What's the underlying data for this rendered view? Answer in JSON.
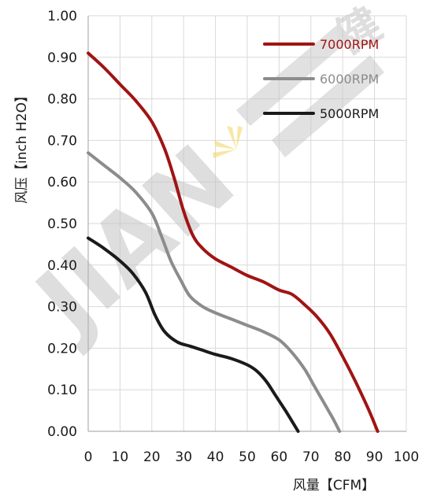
{
  "chart_data": {
    "type": "line",
    "title": "",
    "xlabel": "风量【CFM】",
    "ylabel": "风压【inch H2O】",
    "xlim": [
      0,
      100
    ],
    "ylim": [
      0,
      1.0
    ],
    "x_ticks": [
      "0",
      "10",
      "20",
      "30",
      "40",
      "50",
      "60",
      "70",
      "80",
      "90",
      "100"
    ],
    "y_ticks": [
      "0.00",
      "0.10",
      "0.20",
      "0.30",
      "0.40",
      "0.50",
      "0.60",
      "0.70",
      "0.80",
      "0.90",
      "1.00"
    ],
    "grid": true,
    "legend_position": "top-right",
    "series": [
      {
        "name": "7000RPM",
        "color": "#a01414",
        "points": [
          [
            0,
            0.91
          ],
          [
            5,
            0.875
          ],
          [
            10,
            0.835
          ],
          [
            15,
            0.795
          ],
          [
            20,
            0.745
          ],
          [
            24,
            0.68
          ],
          [
            27,
            0.61
          ],
          [
            30,
            0.53
          ],
          [
            33,
            0.47
          ],
          [
            36,
            0.44
          ],
          [
            40,
            0.415
          ],
          [
            45,
            0.395
          ],
          [
            50,
            0.375
          ],
          [
            55,
            0.36
          ],
          [
            60,
            0.34
          ],
          [
            64,
            0.33
          ],
          [
            68,
            0.305
          ],
          [
            72,
            0.275
          ],
          [
            76,
            0.235
          ],
          [
            80,
            0.18
          ],
          [
            84,
            0.12
          ],
          [
            88,
            0.055
          ],
          [
            91,
            0.0
          ]
        ]
      },
      {
        "name": "6000RPM",
        "color": "#8c8c8c",
        "points": [
          [
            0,
            0.67
          ],
          [
            5,
            0.64
          ],
          [
            10,
            0.61
          ],
          [
            15,
            0.575
          ],
          [
            20,
            0.525
          ],
          [
            23,
            0.47
          ],
          [
            26,
            0.41
          ],
          [
            29,
            0.365
          ],
          [
            32,
            0.325
          ],
          [
            36,
            0.3
          ],
          [
            40,
            0.285
          ],
          [
            45,
            0.27
          ],
          [
            50,
            0.255
          ],
          [
            55,
            0.24
          ],
          [
            60,
            0.22
          ],
          [
            64,
            0.19
          ],
          [
            68,
            0.15
          ],
          [
            71,
            0.11
          ],
          [
            74,
            0.07
          ],
          [
            77,
            0.03
          ],
          [
            79,
            0.0
          ]
        ]
      },
      {
        "name": "5000RPM",
        "color": "#1a1a1a",
        "points": [
          [
            0,
            0.465
          ],
          [
            5,
            0.44
          ],
          [
            10,
            0.41
          ],
          [
            14,
            0.38
          ],
          [
            18,
            0.335
          ],
          [
            21,
            0.28
          ],
          [
            24,
            0.24
          ],
          [
            28,
            0.215
          ],
          [
            32,
            0.205
          ],
          [
            36,
            0.195
          ],
          [
            40,
            0.185
          ],
          [
            45,
            0.175
          ],
          [
            50,
            0.16
          ],
          [
            53,
            0.145
          ],
          [
            56,
            0.12
          ],
          [
            59,
            0.085
          ],
          [
            62,
            0.05
          ],
          [
            64,
            0.025
          ],
          [
            66,
            0.0
          ]
        ]
      }
    ]
  },
  "watermark": {
    "text_left": "JIAN",
    "text_right": "健"
  }
}
